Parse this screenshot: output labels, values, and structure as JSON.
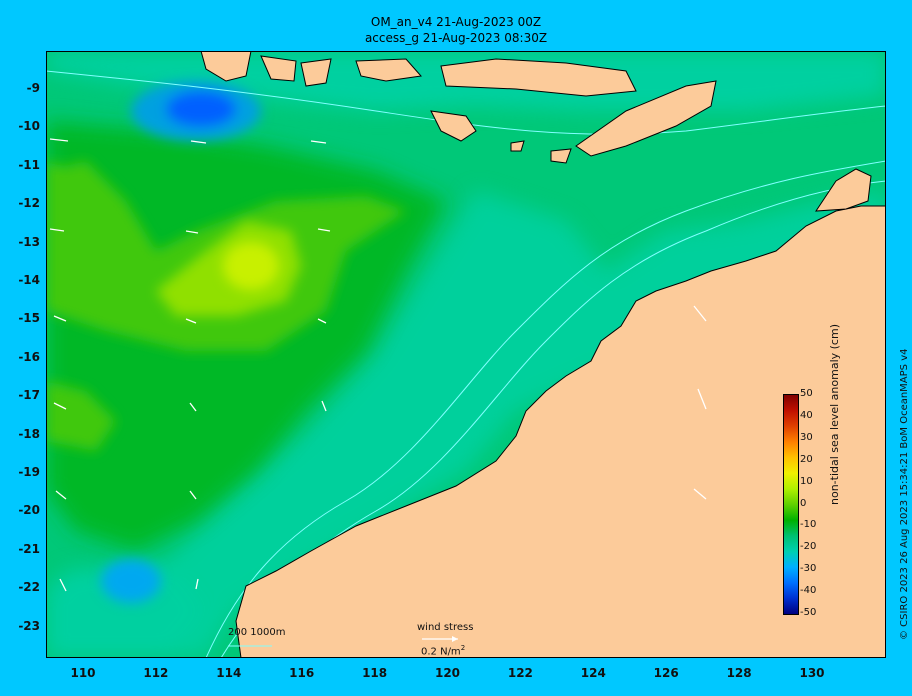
{
  "titles": {
    "line1": "OM_an_v4  21-Aug-2023 00Z",
    "line2": "access_g 21-Aug-2023 08:30Z"
  },
  "axes": {
    "lat_ticks": [
      "-9",
      "-10",
      "-11",
      "-12",
      "-13",
      "-14",
      "-15",
      "-16",
      "-17",
      "-18",
      "-19",
      "-20",
      "-21",
      "-22",
      "-23"
    ],
    "lon_ticks": [
      "110",
      "112",
      "114",
      "116",
      "118",
      "120",
      "122",
      "124",
      "126",
      "128",
      "130"
    ]
  },
  "colorbar": {
    "title": "non-tidal sea level anomaly (cm)",
    "ticks": [
      "50",
      "40",
      "30",
      "20",
      "10",
      "0",
      "-10",
      "-20",
      "-30",
      "-40",
      "-50"
    ],
    "colors": [
      "#000080",
      "#0030d0",
      "#0070ff",
      "#00b0ff",
      "#00d0b0",
      "#00c070",
      "#00b000",
      "#60d000",
      "#b0f000",
      "#f0f000",
      "#ffc000",
      "#ff8000",
      "#e04000",
      "#c01000",
      "#800000"
    ]
  },
  "legend": {
    "isobaths": "200  1000m",
    "wind_title": "wind stress",
    "wind_scale": "0.2 N/m",
    "wind_unit_sup": "2"
  },
  "credit": "© CSIRO 2023   26 Aug 2023 15:34:21 BoM OceanMAPS v4",
  "colors": {
    "land": "#fccb9a",
    "background": "#00c8ff",
    "isobath": "#80ffff"
  }
}
